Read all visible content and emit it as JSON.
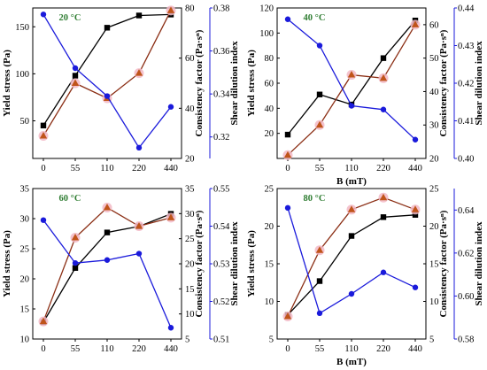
{
  "figure": {
    "colors": {
      "yield": "#000000",
      "consistency": "#8b2e14",
      "consistency_marker": "#c0541a",
      "marker_halo": "#f2b8c6",
      "shear": "#1a1adb",
      "label": "#2f7d32"
    }
  },
  "chart_data": [
    {
      "type": "line",
      "panel_label": "20 °C",
      "xlabel": "",
      "categories": [
        "0",
        "55",
        "110",
        "220",
        "440"
      ],
      "y_left": {
        "label": "Yield stress (Pa)",
        "ylim": [
          10,
          170
        ],
        "ticks": [
          "50",
          "100",
          "150"
        ]
      },
      "y_right1": {
        "label": "Consistency factor (Pa·sⁿ)",
        "ylim": [
          20,
          80
        ],
        "ticks": [
          "20",
          "40",
          "60",
          "80"
        ]
      },
      "y_right2": {
        "label": "Shear dilution index",
        "ylim": [
          0.31,
          0.38
        ],
        "ticks": [
          "0.32",
          "0.34",
          "0.36",
          "0.38"
        ]
      },
      "series": [
        {
          "key": "yield",
          "axis": "y_left",
          "marker": "square",
          "values": [
            45,
            98,
            149,
            162,
            163
          ]
        },
        {
          "key": "consistency",
          "axis": "y_right1",
          "marker": "triangle",
          "values": [
            29,
            50,
            44,
            54,
            79
          ]
        },
        {
          "key": "shear",
          "axis": "y_right2",
          "marker": "circle",
          "values": [
            0.377,
            0.352,
            0.339,
            0.315,
            0.334
          ]
        }
      ]
    },
    {
      "type": "line",
      "panel_label": "40 °C",
      "xlabel": "B (mT)",
      "categories": [
        "0",
        "55",
        "110",
        "220",
        "440"
      ],
      "y_left": {
        "label": "Yield stress (Pa)",
        "ylim": [
          0,
          120
        ],
        "ticks": [
          "20",
          "40",
          "60",
          "80",
          "100",
          "120"
        ]
      },
      "y_right1": {
        "label": "Consistency factor (Pa·sⁿ)",
        "ylim": [
          20,
          65
        ],
        "ticks": [
          "20",
          "30",
          "40",
          "50",
          "60"
        ]
      },
      "y_right2": {
        "label": "Shear dilution index",
        "ylim": [
          0.4,
          0.44
        ],
        "ticks": [
          "0.40",
          "0.41",
          "0.42",
          "0.43",
          "0.44"
        ]
      },
      "series": [
        {
          "key": "yield",
          "axis": "y_left",
          "marker": "square",
          "values": [
            19,
            51,
            43,
            80,
            110
          ]
        },
        {
          "key": "consistency",
          "axis": "y_right1",
          "marker": "triangle",
          "values": [
            21,
            30,
            45,
            44,
            60
          ]
        },
        {
          "key": "shear",
          "axis": "y_right2",
          "marker": "circle",
          "values": [
            0.437,
            0.43,
            0.414,
            0.413,
            0.405
          ]
        }
      ]
    },
    {
      "type": "line",
      "panel_label": "60 °C",
      "xlabel": "",
      "categories": [
        "0",
        "55",
        "110",
        "220",
        "440"
      ],
      "y_left": {
        "label": "Yield stress (Pa)",
        "ylim": [
          10,
          35
        ],
        "ticks": [
          "10",
          "15",
          "20",
          "25",
          "30",
          "35"
        ]
      },
      "y_right1": {
        "label": "Consistency factor (Pa·sⁿ)",
        "ylim": [
          5,
          35
        ],
        "ticks": [
          "5",
          "10",
          "15",
          "20",
          "25",
          "30",
          "35"
        ]
      },
      "y_right2": {
        "label": "Shear dilution index",
        "ylim": [
          0.51,
          0.55
        ],
        "ticks": [
          "0.51",
          "0.52",
          "0.53",
          "0.54",
          "0.55"
        ]
      },
      "series": [
        {
          "key": "yield",
          "axis": "y_left",
          "marker": "square",
          "values": [
            12.8,
            21.8,
            27.7,
            28.7,
            30.8
          ]
        },
        {
          "key": "consistency",
          "axis": "y_right1",
          "marker": "triangle",
          "values": [
            8.5,
            25.2,
            31.2,
            27.5,
            29.2
          ]
        },
        {
          "key": "shear",
          "axis": "y_right2",
          "marker": "circle",
          "values": [
            0.5416,
            0.5302,
            0.531,
            0.5327,
            0.513
          ]
        }
      ]
    },
    {
      "type": "line",
      "panel_label": "80 °C",
      "xlabel": "B (mT)",
      "categories": [
        "0",
        "55",
        "110",
        "220",
        "440"
      ],
      "y_left": {
        "label": "Yield stress (Pa)",
        "ylim": [
          5,
          25
        ],
        "ticks": [
          "5",
          "10",
          "15",
          "20",
          "25"
        ]
      },
      "y_right1": {
        "label": "Consistency factor (Pa·sⁿ)",
        "ylim": [
          5,
          25
        ],
        "ticks": [
          "5",
          "10",
          "15",
          "20",
          "25"
        ]
      },
      "y_right2": {
        "label": "Shear dilution index",
        "ylim": [
          0.58,
          0.65
        ],
        "ticks": [
          "0.58",
          "0.60",
          "0.62",
          "0.64"
        ]
      },
      "series": [
        {
          "key": "yield",
          "axis": "y_left",
          "marker": "square",
          "values": [
            8.2,
            12.7,
            18.7,
            21.2,
            21.5
          ]
        },
        {
          "key": "consistency",
          "axis": "y_right1",
          "marker": "triangle",
          "values": [
            8.0,
            16.8,
            22.2,
            23.8,
            22.2
          ]
        },
        {
          "key": "shear",
          "axis": "y_right2",
          "marker": "circle",
          "values": [
            0.641,
            0.592,
            0.601,
            0.611,
            0.604
          ]
        }
      ]
    }
  ]
}
